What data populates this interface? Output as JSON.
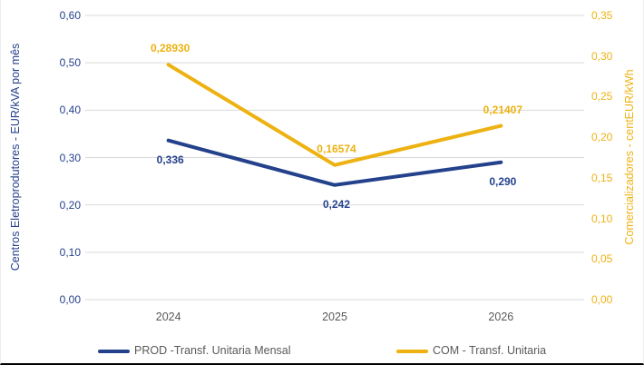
{
  "chart_data": {
    "type": "line",
    "categories": [
      "2024",
      "2025",
      "2026"
    ],
    "series": [
      {
        "name": "PROD -Transf. Unitaria Mensal",
        "axis": "left",
        "color": "#24418C",
        "values": [
          0.336,
          0.242,
          0.29
        ],
        "labels": [
          "0,336",
          "0,242",
          "0,290"
        ],
        "label_position": "below"
      },
      {
        "name": "COM - Transf. Unitaria",
        "axis": "right",
        "color": "#EDB211",
        "values": [
          0.2893,
          0.16574,
          0.21407
        ],
        "labels": [
          "0,28930",
          "0,16574",
          "0,21407"
        ],
        "label_position": "above"
      }
    ],
    "left_axis": {
      "title": "Centros Eletroprodutores - EUR/kVA por mês",
      "min": 0,
      "max": 0.6,
      "step": 0.1,
      "tick_labels": [
        "0,00",
        "0,10",
        "0,20",
        "0,30",
        "0,40",
        "0,50",
        "0,60"
      ],
      "color": "#24418C"
    },
    "right_axis": {
      "title": "Comercializadores - centEUR/kWh",
      "min": 0,
      "max": 0.35,
      "step": 0.05,
      "tick_labels": [
        "0,00",
        "0,05",
        "0,10",
        "0,15",
        "0,20",
        "0,25",
        "0,30",
        "0,35"
      ],
      "color": "#EFB214"
    },
    "grid": true,
    "gridline_color": "#D9D9D9",
    "x_label_color": "#595959",
    "legend_position": "bottom",
    "legend_text_color": "#595959",
    "line_width": 4
  }
}
